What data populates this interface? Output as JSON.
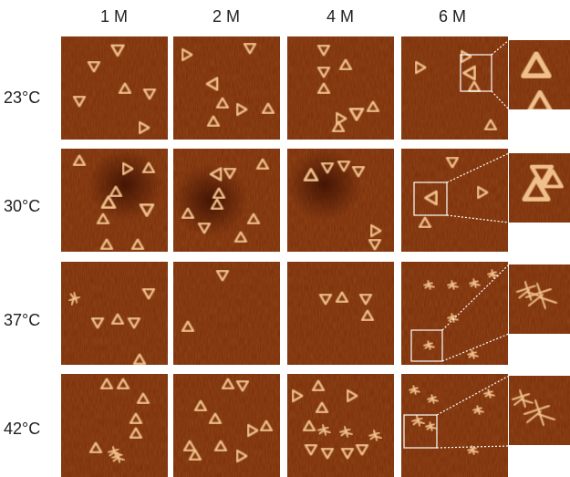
{
  "columns": [
    "1 M",
    "2 M",
    "4 M",
    "6 M"
  ],
  "rows": [
    "23°C",
    "30°C",
    "37°C",
    "42°C"
  ],
  "colors": {
    "background": "#7a2a08",
    "background_dark": "#3a0f02",
    "triangle": "#f0c08a",
    "triangle_glow": "#ffe2b8",
    "box": "#ffffff"
  },
  "icons": {
    "intact_origami": "triangle-origami-icon",
    "broken_origami": "fragmented-origami-icon"
  }
}
